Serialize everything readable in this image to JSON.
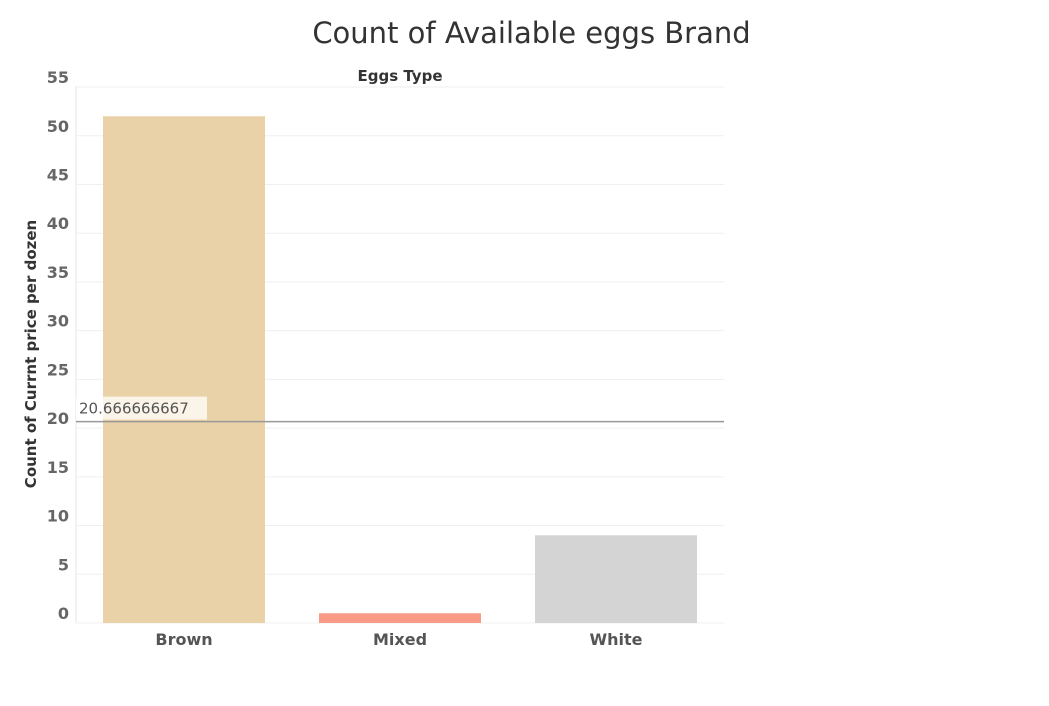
{
  "chart_data": {
    "type": "bar",
    "title": "Count of Available eggs Brand",
    "column_header": "Eggs Type",
    "ylabel": "Count of Currnt price per dozen",
    "xlabel": "",
    "categories": [
      "Brown",
      "Mixed",
      "White"
    ],
    "values": [
      52,
      1,
      9
    ],
    "colors": [
      "#EAD2A8",
      "#F89A86",
      "#D4D4D4"
    ],
    "ylim": [
      0,
      55
    ],
    "yticks": [
      0,
      5,
      10,
      15,
      20,
      25,
      30,
      35,
      40,
      45,
      50,
      55
    ],
    "reference_line": {
      "value": 20.666666667,
      "label": "20.666666667",
      "color": "#999999"
    },
    "grid": true,
    "legend": "none"
  }
}
